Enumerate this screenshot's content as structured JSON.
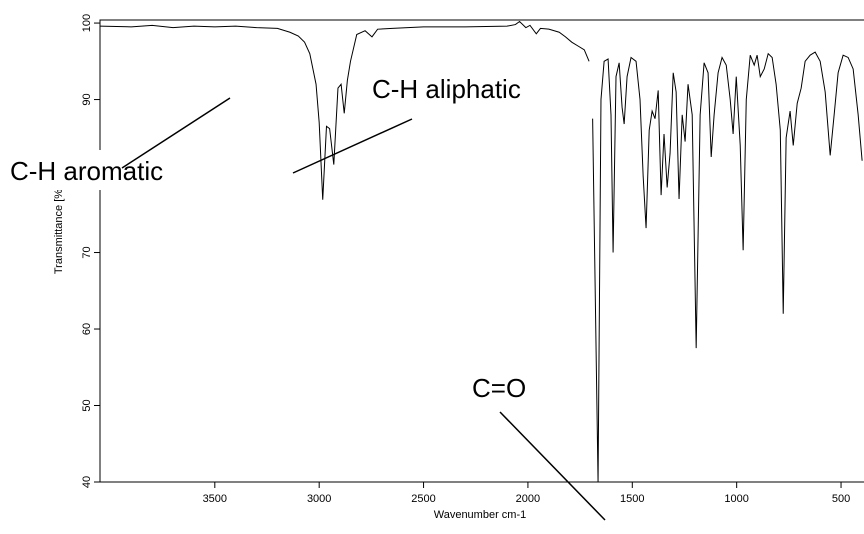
{
  "chart_data": {
    "type": "line",
    "x_label": "Wavenumber cm-1",
    "y_label": "Transmittance [%]",
    "annotations": [
      "C-H aromatic",
      "C-H aliphatic",
      "C=O"
    ],
    "color": "#000000",
    "xlim": [
      4050,
      390
    ],
    "ylim": [
      40,
      100.4
    ],
    "xticks": [
      3500,
      3000,
      2500,
      2000,
      1500,
      1000,
      500
    ],
    "yticks": [
      40,
      50,
      60,
      70,
      80,
      90,
      100
    ],
    "x": [
      4050,
      3900,
      3800,
      3700,
      3600,
      3500,
      3400,
      3300,
      3200,
      3140,
      3100,
      3070,
      3045,
      3015,
      3000,
      2983,
      2965,
      2950,
      2930,
      2910,
      2895,
      2880,
      2865,
      2850,
      2820,
      2780,
      2747,
      2720,
      2650,
      2500,
      2300,
      2100,
      2060,
      2040,
      2010,
      1990,
      1960,
      1940,
      1900,
      1850,
      1820,
      1790,
      1760,
      1730,
      1707,
      1698,
      1690,
      1664,
      1650,
      1635,
      1616,
      1602,
      1592,
      1578,
      1563,
      1549,
      1539,
      1525,
      1506,
      1482,
      1463,
      1448,
      1434,
      1419,
      1405,
      1391,
      1376,
      1362,
      1348,
      1333,
      1319,
      1304,
      1290,
      1276,
      1261,
      1247,
      1233,
      1213,
      1194,
      1175,
      1156,
      1137,
      1122,
      1108,
      1089,
      1070,
      1050,
      1031,
      1017,
      1002,
      983,
      969,
      954,
      935,
      916,
      902,
      887,
      868,
      849,
      830,
      811,
      791,
      777,
      763,
      744,
      729,
      710,
      691,
      672,
      648,
      624,
      600,
      576,
      552,
      533,
      514,
      490,
      466,
      442,
      418,
      399
    ],
    "values": [
      99.6,
      99.5,
      99.7,
      99.4,
      99.6,
      99.5,
      99.6,
      99.4,
      99.3,
      98.8,
      98.3,
      97.5,
      96,
      92,
      87,
      76.9,
      86.5,
      86.2,
      81.5,
      91.5,
      92,
      88.2,
      92.5,
      95,
      98.5,
      99,
      98.2,
      99.2,
      99.3,
      99.5,
      99.5,
      99.6,
      99.8,
      100.2,
      99.4,
      99.7,
      98.6,
      99.3,
      99.2,
      98.8,
      98.2,
      97.5,
      97,
      96.5,
      95,
      null,
      87.5,
      40,
      90,
      95,
      95.3,
      88,
      70,
      93,
      94.8,
      89,
      86.8,
      93,
      95.5,
      95,
      90,
      80,
      73.2,
      86,
      88.5,
      87.5,
      91.2,
      77.5,
      85.5,
      78.5,
      83,
      93.5,
      91,
      77,
      88,
      84.5,
      92,
      88,
      57.5,
      88,
      94.8,
      93.5,
      82.5,
      88,
      93.5,
      95.5,
      94.5,
      90,
      85.5,
      93,
      84,
      70.3,
      90,
      95.8,
      94.5,
      95.8,
      93,
      94,
      96,
      95.5,
      92,
      86,
      62,
      85,
      88.5,
      84,
      89.5,
      91.5,
      95,
      95.8,
      96.2,
      95,
      91,
      82.7,
      88,
      93.5,
      95.8,
      95.5,
      94,
      88,
      82
    ]
  }
}
